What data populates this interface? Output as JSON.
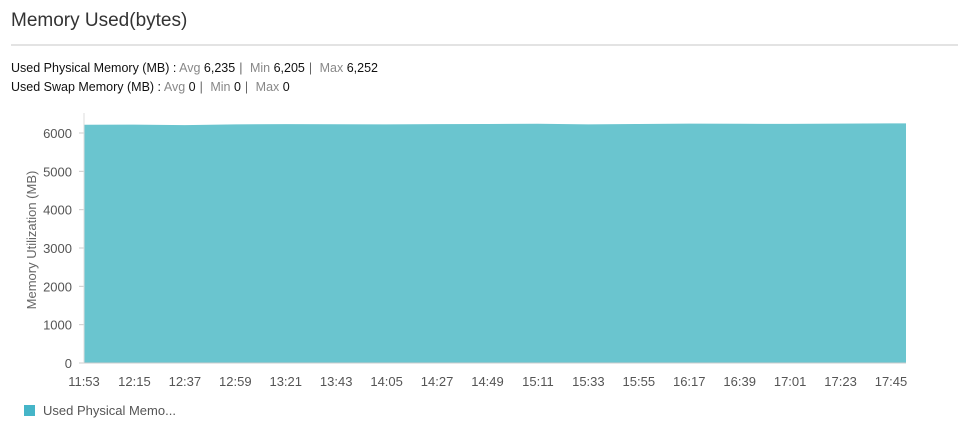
{
  "title": "Memory Used(bytes)",
  "stats": [
    {
      "label": "Used Physical Memory (MB) :",
      "avg_label": "Avg",
      "avg": "6,235",
      "min_label": "Min",
      "min": "6,205",
      "max_label": "Max",
      "max": "6,252"
    },
    {
      "label": "Used Swap Memory (MB) :",
      "avg_label": "Avg",
      "avg": "0",
      "min_label": "Min",
      "min": "0",
      "max_label": "Max",
      "max": "0"
    }
  ],
  "chart_data": {
    "type": "area",
    "ylabel": "Memory Utilization (MB)",
    "ylim": [
      0,
      6000
    ],
    "yticks": [
      0,
      1000,
      2000,
      3000,
      4000,
      5000,
      6000
    ],
    "x": [
      "11:53",
      "12:15",
      "12:37",
      "12:59",
      "13:21",
      "13:43",
      "14:05",
      "14:27",
      "14:49",
      "15:11",
      "15:33",
      "15:55",
      "16:17",
      "16:39",
      "17:01",
      "17:23",
      "17:45"
    ],
    "series": [
      {
        "name": "Used Physical Memo...",
        "color": "#45b5c8",
        "fill": "#6ac5cf",
        "values": [
          6215,
          6220,
          6205,
          6225,
          6230,
          6228,
          6226,
          6232,
          6236,
          6240,
          6226,
          6236,
          6244,
          6240,
          6238,
          6246,
          6252
        ]
      }
    ],
    "grid": true,
    "legend": "bottom-left"
  }
}
